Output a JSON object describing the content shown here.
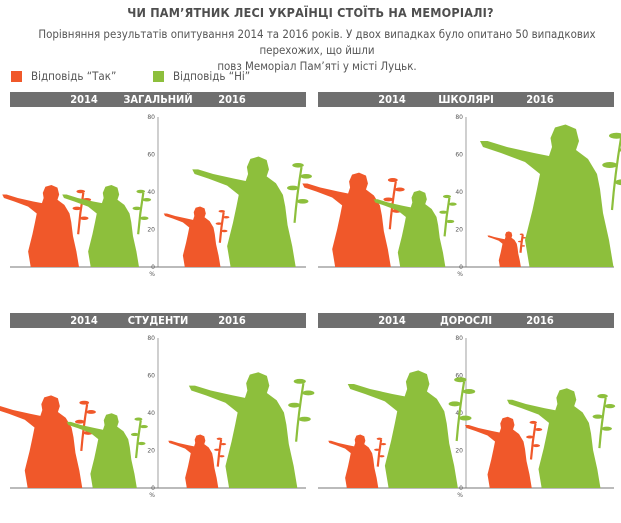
{
  "title": "ЧИ ПАМ’ЯТНИК ЛЕСІ УКРАЇНЦІ СТОЇТЬ НА МЕМОРІАЛІ?",
  "subtitle_line1": "Порівняння результатів опитування 2014 та 2016 років. У двох випадках було опитано 50 випадкових перехожих, що йшли",
  "subtitle_line2": "повз Меморіал Пам’яті у місті Луцьк.",
  "legend": [
    {
      "label": "Відповідь “Так”",
      "color": "#f0582a"
    },
    {
      "label": "Відповідь “Ні”",
      "color": "#8dbf3c"
    }
  ],
  "colors": {
    "yes": "#f0582a",
    "no": "#8dbf3c",
    "header": "#6f6f6f",
    "axis": "#777777"
  },
  "chart_data": [
    {
      "type": "bar",
      "category": "ЗАГАЛЬНИЙ",
      "years": [
        "2014",
        "2016"
      ],
      "ylim": [
        0,
        80
      ],
      "yticks": [
        "0",
        "20",
        "40",
        "60",
        "80"
      ],
      "yunit": "%",
      "series": [
        {
          "name": "Відповідь “Так”",
          "values": [
            46,
            34
          ]
        },
        {
          "name": "Відповідь “Ні”",
          "values": [
            46,
            62
          ]
        }
      ]
    },
    {
      "type": "bar",
      "category": "ШКОЛЯРІ",
      "years": [
        "2014",
        "2016"
      ],
      "ylim": [
        0,
        80
      ],
      "yticks": [
        "0",
        "20",
        "40",
        "60",
        "80"
      ],
      "yunit": "%",
      "series": [
        {
          "name": "Відповідь “Так”",
          "values": [
            53,
            20
          ]
        },
        {
          "name": "Відповідь “Ні”",
          "values": [
            43,
            80
          ]
        }
      ]
    },
    {
      "type": "bar",
      "category": "СТУДЕНТИ",
      "years": [
        "2014",
        "2016"
      ],
      "ylim": [
        0,
        80
      ],
      "yticks": [
        "0",
        "20",
        "40",
        "60",
        "80"
      ],
      "yunit": "%",
      "series": [
        {
          "name": "Відповідь “Так”",
          "values": [
            52,
            30
          ]
        },
        {
          "name": "Відповідь “Ні”",
          "values": [
            42,
            65
          ]
        }
      ]
    },
    {
      "type": "bar",
      "category": "ДОРОСЛІ",
      "years": [
        "2014",
        "2016"
      ],
      "ylim": [
        0,
        80
      ],
      "yticks": [
        "0",
        "20",
        "40",
        "60",
        "80"
      ],
      "yunit": "%",
      "series": [
        {
          "name": "Відповідь “Так”",
          "values": [
            30,
            40
          ]
        },
        {
          "name": "Відповідь “Ні”",
          "values": [
            66,
            56
          ]
        }
      ]
    }
  ]
}
